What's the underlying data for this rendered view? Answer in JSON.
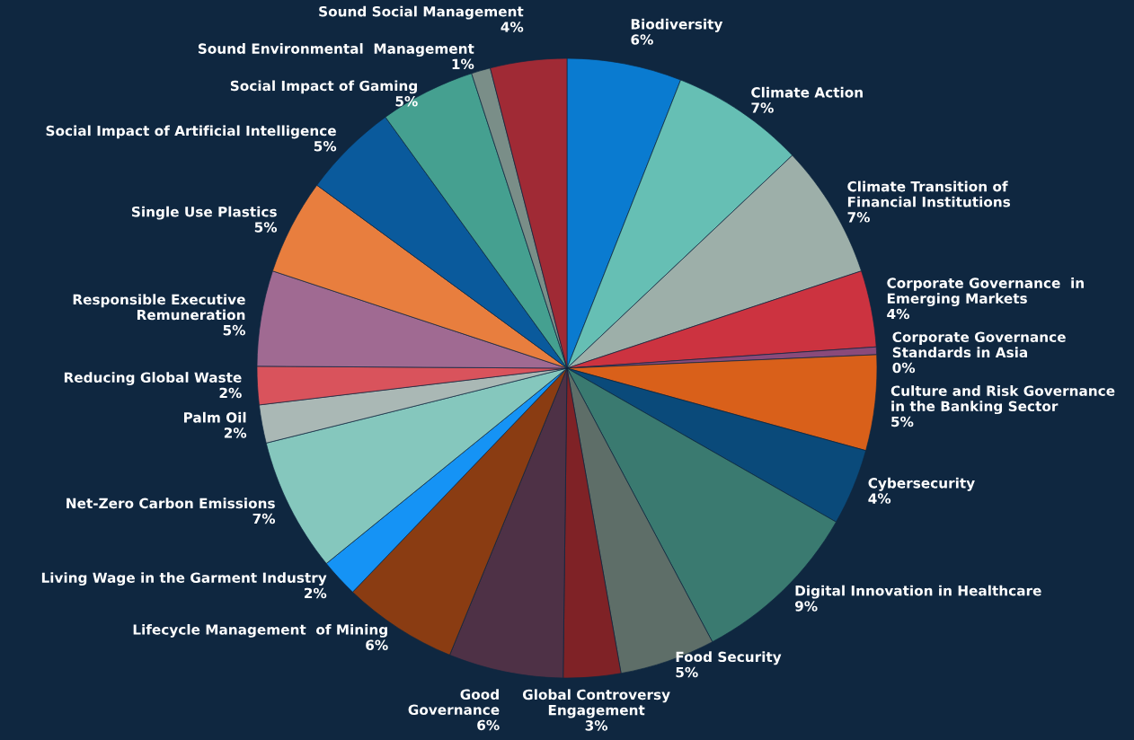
{
  "chart_data": {
    "type": "pie",
    "categories": [
      "Biodiversity",
      "Climate Action",
      "Climate Transition of\nFinancial Institutions",
      "Corporate Governance  in\nEmerging Markets",
      "Corporate Governance\nStandards in Asia",
      "Culture and Risk Governance\nin the Banking Sector",
      "Cybersecurity",
      "Digital Innovation in Healthcare",
      "Food Security",
      "Global Controversy\nEngagement",
      "Good\nGovernance",
      "Lifecycle Management  of Mining",
      "Living Wage in the Garment Industry",
      "Net-Zero Carbon Emissions",
      "Palm Oil",
      "Reducing Global Waste",
      "Responsible Executive\nRemuneration",
      "Single Use Plastics",
      "Social Impact of Artificial Intelligence",
      "Social Impact of Gaming",
      "Sound Environmental  Management",
      "Sound Social Management"
    ],
    "values": [
      6,
      7,
      7,
      4,
      0.4,
      5,
      4,
      9,
      5,
      3,
      6,
      6,
      2,
      7,
      2,
      2,
      5,
      5,
      5,
      5,
      1,
      4
    ],
    "colors": [
      "#0a7bd0",
      "#66bfb4",
      "#9dafa9",
      "#cc3340",
      "#8a4a7a",
      "#d9601a",
      "#0a4a7a",
      "#3a7a70",
      "#5e6e68",
      "#7f2226",
      "#4e3146",
      "#8a3c12",
      "#1593f5",
      "#85c7bd",
      "#aab8b5",
      "#d9535c",
      "#a06a92",
      "#e87e3e",
      "#0a5a9c",
      "#45a090",
      "#7a8e88",
      "#a02a35"
    ],
    "value_labels": [
      "6%",
      "7%",
      "7%",
      "4%",
      "0%",
      "5%",
      "4%",
      "9%",
      "5%",
      "3%",
      "6%",
      "6%",
      "2%",
      "7%",
      "2%",
      "2%",
      "5%",
      "5%",
      "5%",
      "5%",
      "1%",
      "4%"
    ],
    "legend": false
  }
}
